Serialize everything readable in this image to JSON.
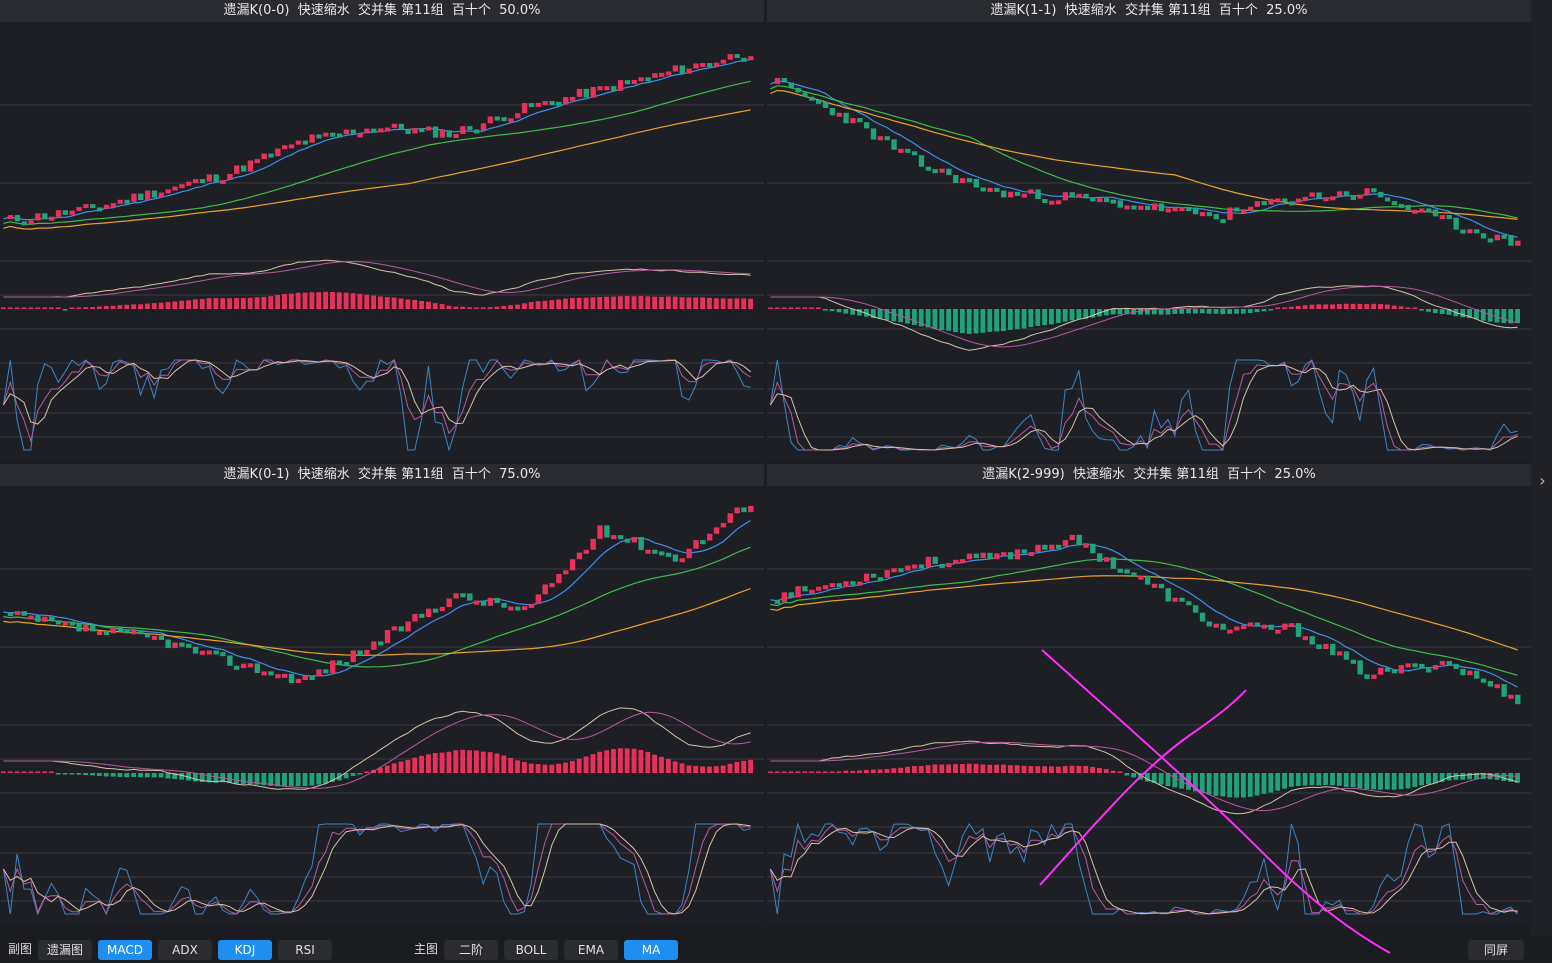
{
  "colors": {
    "up": "#e8305a",
    "down": "#1fa37a",
    "ma_fast": "#3b8ff0",
    "ma_mid": "#3dbb4a",
    "ma_slow": "#e9a229",
    "osc_a": "#d6c2a6",
    "osc_b": "#b55aa0",
    "kdj_j": "#3b86c4",
    "annotation": "#ff2dff"
  },
  "chart_data": [
    {
      "type": "candlestick",
      "title": "遗漏K(0-0)  快速缩水  交并集 第11组  百十个  50.0%",
      "seed": 11,
      "trend": [
        0.18,
        0.22,
        0.3,
        0.38,
        0.52,
        0.58,
        0.55,
        0.66,
        0.74,
        0.82,
        0.9
      ],
      "subplots": [
        "MACD",
        "KDJ"
      ]
    },
    {
      "type": "candlestick",
      "title": "遗漏K(1-1)  快速缩水  交并集 第11组  百十个  25.0%",
      "seed": 23,
      "trend": [
        0.78,
        0.62,
        0.42,
        0.3,
        0.28,
        0.24,
        0.2,
        0.28,
        0.3,
        0.18,
        0.08
      ],
      "subplots": [
        "MACD",
        "KDJ"
      ]
    },
    {
      "type": "candlestick",
      "title": "遗漏K(0-1)  快速缩水  交并集 第11组  百十个  75.0%",
      "seed": 37,
      "trend": [
        0.48,
        0.42,
        0.38,
        0.28,
        0.2,
        0.36,
        0.56,
        0.5,
        0.84,
        0.72,
        0.96
      ],
      "subplots": [
        "MACD",
        "KDJ"
      ]
    },
    {
      "type": "candlestick",
      "title": "遗漏K(2-999)  快速缩水  交并集 第11组  百十个  25.0%",
      "seed": 53,
      "trend": [
        0.55,
        0.62,
        0.7,
        0.72,
        0.8,
        0.62,
        0.42,
        0.42,
        0.22,
        0.28,
        0.12
      ],
      "subplots": [
        "MACD",
        "KDJ"
      ]
    }
  ],
  "toolbar": {
    "sub_label": "副图",
    "sub_buttons": [
      {
        "label": "遗漏图",
        "active": false
      },
      {
        "label": "MACD",
        "active": true
      },
      {
        "label": "ADX",
        "active": false
      },
      {
        "label": "KDJ",
        "active": true
      },
      {
        "label": "RSI",
        "active": false
      }
    ],
    "main_label": "主图",
    "main_buttons": [
      {
        "label": "二阶",
        "active": false
      },
      {
        "label": "BOLL",
        "active": false
      },
      {
        "label": "EMA",
        "active": false
      },
      {
        "label": "MA",
        "active": true
      }
    ],
    "sync_label": "同屏"
  },
  "scroll_arrow": "›"
}
